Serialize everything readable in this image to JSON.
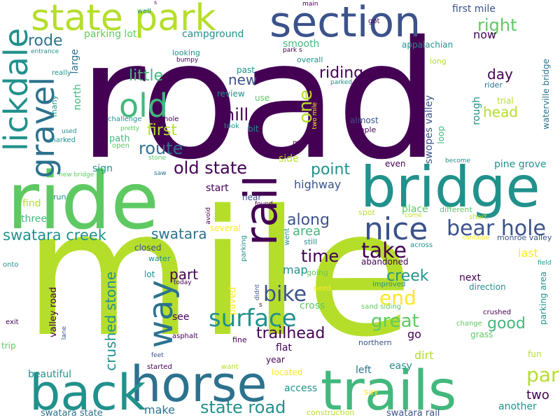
{
  "palette": {
    "dark_purple": "#440154",
    "indigo": "#3b528b",
    "teal": "#21918c",
    "green": "#5ec962",
    "lime": "#b5de2b",
    "yellow": "#fde725"
  },
  "words": [
    "road",
    "mile",
    "ride",
    "bridge",
    "horse",
    "trails",
    "back",
    "section",
    "state park",
    "rail",
    "lickdale",
    "gravel",
    "old",
    "nice",
    "bear hole",
    "way",
    "surface",
    "old state",
    "state road",
    "swatara creek",
    "bike",
    "trailhead",
    "crushed stone",
    "park",
    "take",
    "end",
    "great",
    "creek",
    "good",
    "first mile",
    "right",
    "rode",
    "riding",
    "route",
    "little",
    "first",
    "hill",
    "new",
    "one",
    "time",
    "point",
    "along",
    "area",
    "map",
    "swatara",
    "part",
    "day",
    "head",
    "swopes valley",
    "waterville bridge",
    "pine grove",
    "highway",
    "parking lot",
    "campground",
    "now",
    "appalachian",
    "smooth",
    "overall",
    "past",
    "review",
    "use",
    "took",
    "bit",
    "almost",
    "people",
    "trial",
    "rider",
    "rough",
    "loop",
    "north",
    "large",
    "sign",
    "find",
    "three",
    "run",
    "start",
    "near",
    "side",
    "even",
    "place",
    "different",
    "short",
    "come",
    "spot",
    "several",
    "closed",
    "water",
    "lot",
    "see",
    "paved",
    "cross",
    "abandoned",
    "improved",
    "sand siding",
    "next",
    "direction",
    "last",
    "monroe valley",
    "field",
    "parking area",
    "crushed",
    "change",
    "grass",
    "fun",
    "dirt",
    "easy",
    "left",
    "go",
    "northern",
    "flat",
    "year",
    "fine",
    "asphalt",
    "feet",
    "started",
    "want",
    "located",
    "access",
    "say",
    "construction",
    "swatara state",
    "swatara rail",
    "another",
    "two",
    "make",
    "beautiful",
    "valley road",
    "trip",
    "exit",
    "lane",
    "onto",
    "today",
    "didnt",
    "need",
    "going",
    "still",
    "went",
    "parking",
    "avoid",
    "found",
    "across",
    "continue",
    "saw",
    "stone",
    "become",
    "new bridge",
    "path",
    "open",
    "challenge",
    "pretty",
    "marked",
    "used",
    "many",
    "hole",
    "mostly",
    "two mile",
    "parked",
    "long",
    "entrance",
    "really",
    "looking",
    "bumpy",
    "park s",
    "main",
    "got",
    "well",
    "s",
    "s"
  ]
}
